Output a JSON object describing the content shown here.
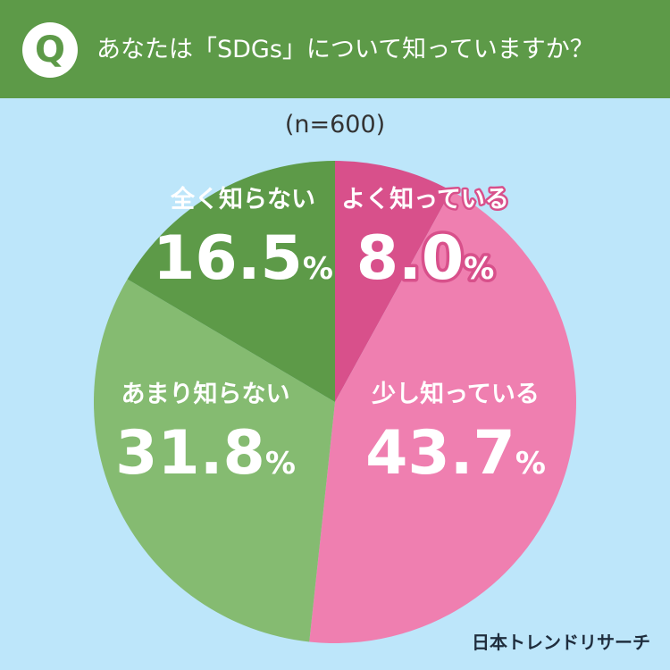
{
  "header": {
    "badge": "Q",
    "question": "あなたは「SDGs」について知っていますか？"
  },
  "sample_size": "(n=600)",
  "brand": "日本トレンドリサーチ",
  "colors": {
    "header_bg": "#5d9a48",
    "background": "#bde6fa"
  },
  "chart_data": {
    "type": "pie",
    "unit": "%",
    "start": "top",
    "direction": "clockwise",
    "slices": [
      {
        "label": "よく知っている",
        "value": 8.0,
        "display": "8.0",
        "color": "#d8508b"
      },
      {
        "label": "少し知っている",
        "value": 43.7,
        "display": "43.7",
        "color": "#ef7fb0"
      },
      {
        "label": "あまり知らない",
        "value": 31.8,
        "display": "31.8",
        "color": "#85bb71"
      },
      {
        "label": "全く知らない",
        "value": 16.5,
        "display": "16.5",
        "color": "#5d9a48"
      }
    ]
  }
}
